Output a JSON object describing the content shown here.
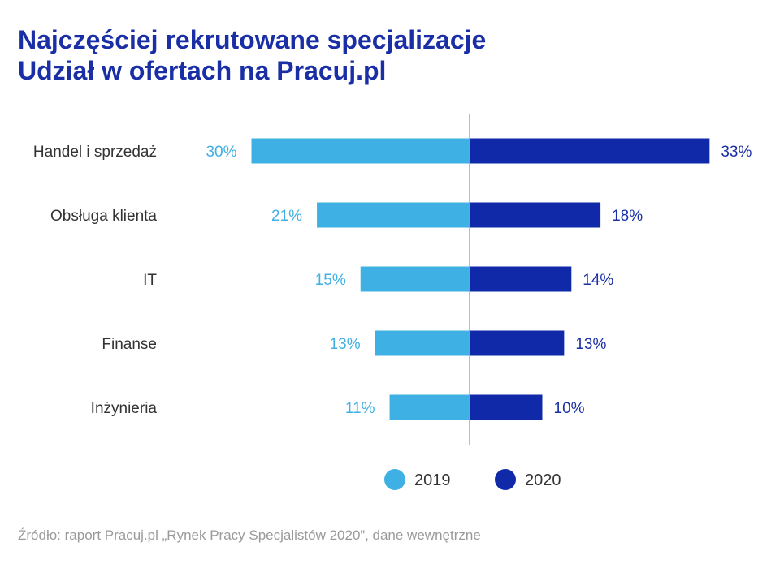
{
  "title_line1": "Najczęściej rekrutowane specjalizacje",
  "title_line2": "Udział w ofertach na Pracuj.pl",
  "source": "Źródło: raport Pracuj.pl „Rynek Pracy Specjalistów 2020”, dane wewnętrzne",
  "colors": {
    "y2019": "#3fb0e3",
    "y2020": "#0f29a8",
    "axis": "#9a9a9a",
    "title": "#1a2ea6"
  },
  "chart_data": {
    "type": "bar",
    "orientation": "horizontal-diverging",
    "categories": [
      "Handel i sprzedaż",
      "Obsługa klienta",
      "IT",
      "Finanse",
      "Inżynieria"
    ],
    "series": [
      {
        "name": "2019",
        "values": [
          30,
          21,
          15,
          13,
          11
        ],
        "labels": [
          "30%",
          "21%",
          "15%",
          "13%",
          "11%"
        ]
      },
      {
        "name": "2020",
        "values": [
          33,
          18,
          14,
          13,
          10
        ],
        "labels": [
          "33%",
          "18%",
          "14%",
          "13%",
          "10%"
        ]
      }
    ],
    "unit": "%",
    "legend": "bottom-center",
    "grid": false
  }
}
